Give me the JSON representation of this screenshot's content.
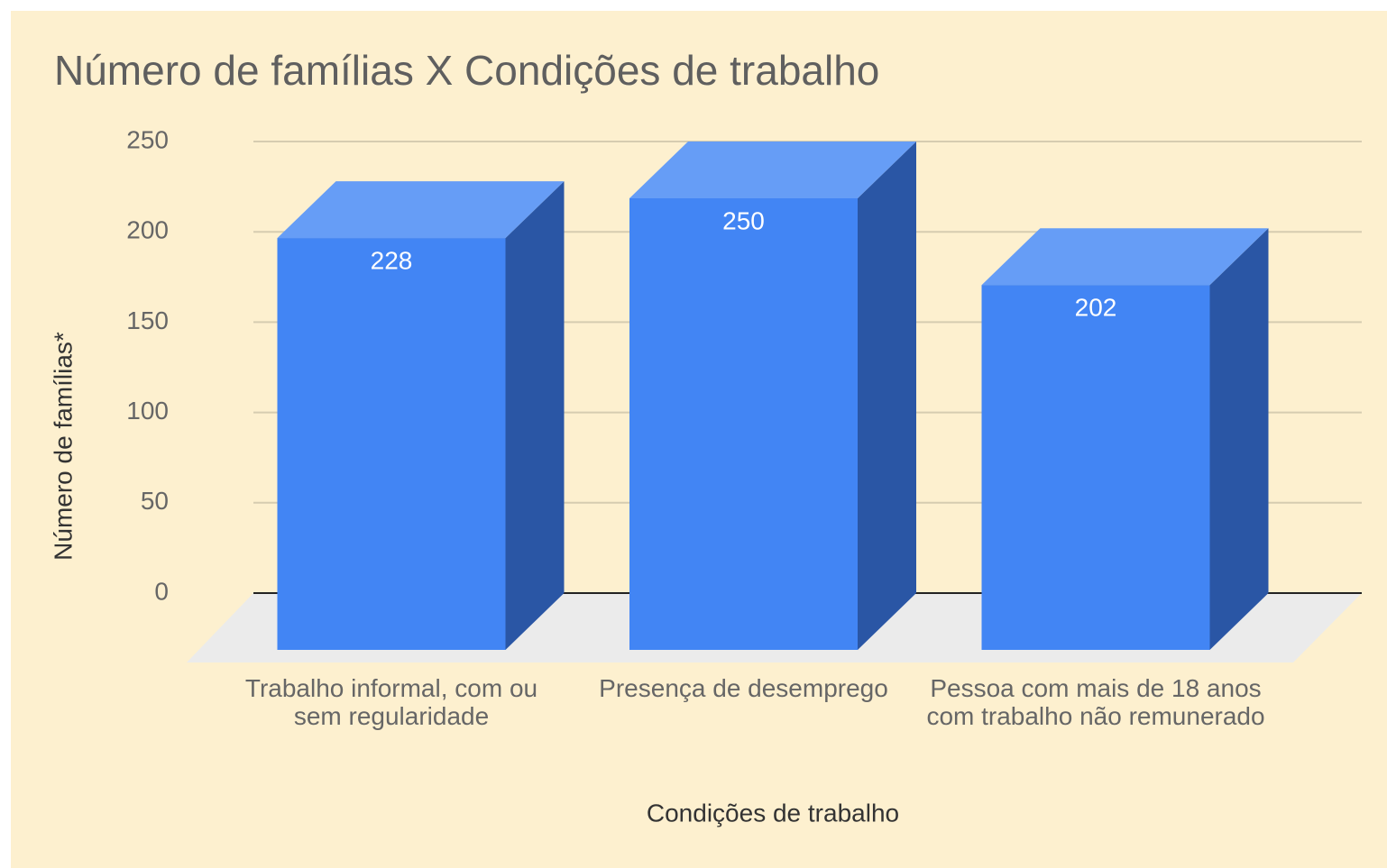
{
  "chart_data": {
    "type": "bar3d",
    "title": "Número de famílias X Condições de trabalho",
    "x_label": "Condições de trabalho",
    "y_label": "Número de famílias*",
    "categories": [
      "Trabalho informal, com ou sem regularidade",
      "Presença de desemprego",
      "Pessoa com mais de 18 anos com trabalho não remunerado"
    ],
    "values": [
      228,
      250,
      202
    ],
    "color": "#4285f4",
    "ylim": [
      0,
      250
    ],
    "yticks": [
      0,
      50,
      100,
      150,
      200,
      250
    ],
    "grid": true
  }
}
